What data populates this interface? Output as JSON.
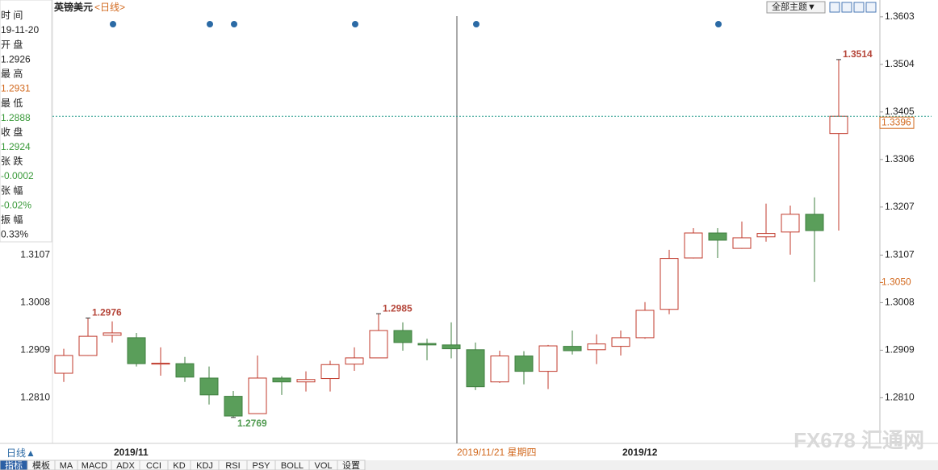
{
  "chart_data": {
    "type": "candlestick",
    "title": "英镑美元",
    "subtitle": "<日线>",
    "categories": [
      null,
      null,
      "2019/11",
      null,
      null,
      null,
      null,
      null,
      null,
      null,
      null,
      null,
      null,
      null,
      null,
      null,
      null,
      null,
      null,
      null,
      null,
      null,
      null,
      "2019/12",
      null,
      null,
      null,
      null,
      null,
      null,
      null,
      null,
      null
    ],
    "open": [
      1.2861,
      1.2898,
      1.294,
      1.2935,
      1.288,
      1.2881,
      1.2851,
      1.2813,
      1.2777,
      1.2851,
      1.2843,
      1.285,
      1.288,
      1.2893,
      1.295,
      1.2923,
      1.292,
      1.291,
      1.2843,
      1.2897,
      1.2865,
      1.2917,
      1.291,
      1.2917,
      1.2935,
      1.2994,
      1.3101,
      1.3153,
      1.3121,
      1.3145,
      1.3155,
      1.3192,
      1.336
    ],
    "high": [
      1.2912,
      1.2976,
      1.2969,
      1.2945,
      1.2915,
      1.2895,
      1.2875,
      1.2824,
      1.2898,
      1.2855,
      1.2865,
      1.2887,
      1.2915,
      1.2985,
      1.2967,
      1.2933,
      1.2967,
      1.2925,
      1.2908,
      1.2907,
      1.292,
      1.295,
      1.2942,
      1.295,
      1.3009,
      1.3118,
      1.3163,
      1.3163,
      1.3177,
      1.3214,
      1.321,
      1.3227,
      1.3514
    ],
    "low": [
      1.2843,
      1.2897,
      1.2925,
      1.2875,
      1.2856,
      1.2843,
      1.2796,
      1.2769,
      1.2777,
      1.2816,
      1.2823,
      1.2823,
      1.2866,
      1.2893,
      1.2908,
      1.2888,
      1.2892,
      1.2826,
      1.2841,
      1.2838,
      1.2828,
      1.29,
      1.288,
      1.2898,
      1.2933,
      1.2984,
      1.31,
      1.3101,
      1.312,
      1.3135,
      1.3108,
      1.3051,
      1.3158
    ],
    "close": [
      1.2898,
      1.2938,
      1.2945,
      1.2881,
      1.2882,
      1.2853,
      1.2816,
      1.2772,
      1.2851,
      1.2843,
      1.2848,
      1.2879,
      1.2893,
      1.295,
      1.2925,
      1.292,
      1.2912,
      1.2833,
      1.2897,
      1.2865,
      1.2918,
      1.2908,
      1.2922,
      1.2935,
      1.2992,
      1.31,
      1.3153,
      1.3138,
      1.3143,
      1.3152,
      1.3192,
      1.3158,
      1.3396
    ],
    "high_labels": [
      null,
      "1.2976",
      null,
      null,
      null,
      null,
      null,
      null,
      null,
      null,
      null,
      null,
      null,
      "1.2985",
      null,
      null,
      null,
      null,
      null,
      null,
      null,
      null,
      null,
      null,
      null,
      null,
      null,
      null,
      null,
      null,
      null,
      null,
      "1.3514"
    ],
    "low_labels": [
      null,
      null,
      null,
      null,
      null,
      null,
      null,
      "1.2769",
      null,
      null,
      null,
      null,
      null,
      null,
      null,
      null,
      null,
      null,
      null,
      null,
      null,
      null,
      null,
      null,
      null,
      null,
      null,
      null,
      null,
      null,
      null,
      null,
      null
    ],
    "up_color": "#c0392b",
    "down_color": "#5a9e5a",
    "high_label_color": "#b5463a",
    "low_label_color": "#4f9a4f",
    "ylim": [
      1.2715,
      1.3638
    ],
    "yticks": [
      {
        "value": 1.281,
        "label": "1.2810"
      },
      1.2909,
      1.3008,
      1.3107,
      1.3207,
      1.3306,
      1.3405,
      1.3504,
      1.3603
    ],
    "grid": false,
    "last_price_color": "#2a9d8f",
    "crosshair": {
      "label": "2019/11/21 星期四",
      "price": {
        "value": 1.305,
        "label": "1.3050"
      }
    }
  },
  "info_panel": [
    {
      "label": "时 间",
      "value": "19-11-20",
      "color": "#222222"
    },
    {
      "label": "开 盘",
      "value": "1.2926",
      "color": "#222222"
    },
    {
      "label": "最 高",
      "value": "1.2931",
      "color": "#d2691e"
    },
    {
      "label": "最 低",
      "value": "1.2888",
      "color": "#3a9a3a"
    },
    {
      "label": "收 盘",
      "value": "1.2924",
      "color": "#3a9a3a"
    },
    {
      "label": "张 跌",
      "value": "-0.0002",
      "color": "#3a9a3a"
    },
    {
      "label": "张 幅",
      "value": "-0.02%",
      "color": "#3a9a3a"
    },
    {
      "label": "振 幅",
      "value": "0.33%",
      "color": "#222222"
    }
  ],
  "toolbar": {
    "theme_button": "全部主题▼"
  },
  "period_toggle": "日线▲",
  "tabs": [
    "指标",
    "模板",
    "MA",
    "MACD",
    "ADX",
    "CCI",
    "KD",
    "KDJ",
    "RSI",
    "PSY",
    "BOLL",
    "VOL",
    "设置"
  ],
  "watermark": "FX678 汇通网"
}
